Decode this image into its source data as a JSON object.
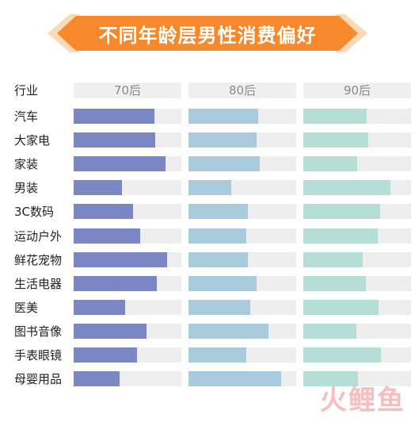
{
  "title": "不同年龄层男性消费偏好",
  "watermark": "火鲤鱼",
  "colors": {
    "banner_orange": "#f7892c",
    "banner_light": "#fdd9b5",
    "track": "#eeeeee",
    "series_70": "#7b86c4",
    "series_80": "#a9cbdc",
    "series_90": "#b5dfd6"
  },
  "chart_data": {
    "type": "bar",
    "orientation": "horizontal",
    "category_header": "行业",
    "categories": [
      "汽车",
      "大家电",
      "家装",
      "男装",
      "3C数码",
      "运动户外",
      "鲜花宠物",
      "生活电器",
      "医美",
      "图书音像",
      "手表眼镜",
      "母婴用品"
    ],
    "series": [
      {
        "name": "70后",
        "values": [
          0.75,
          0.76,
          0.85,
          0.45,
          0.55,
          0.62,
          0.87,
          0.77,
          0.48,
          0.68,
          0.59,
          0.43
        ]
      },
      {
        "name": "80后",
        "values": [
          0.65,
          0.63,
          0.66,
          0.4,
          0.55,
          0.54,
          0.55,
          0.63,
          0.57,
          0.74,
          0.54,
          0.86
        ]
      },
      {
        "name": "90后",
        "values": [
          0.59,
          0.6,
          0.5,
          0.81,
          0.71,
          0.69,
          0.55,
          0.58,
          0.7,
          0.49,
          0.72,
          0.51
        ]
      }
    ],
    "xlim": [
      0,
      1
    ],
    "grid": false,
    "legend": "column headers"
  }
}
